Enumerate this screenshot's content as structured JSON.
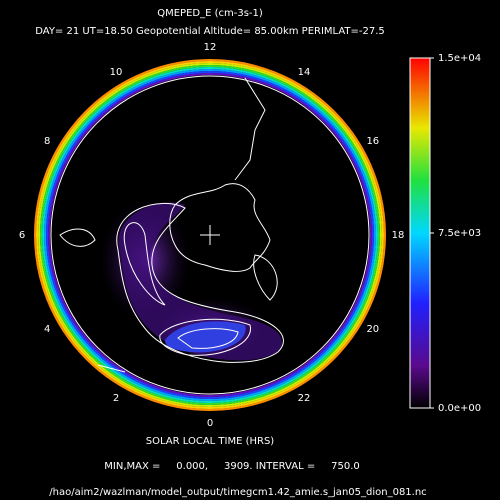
{
  "chart_data": {
    "type": "polar-contour",
    "title": "QMEPED_E (cm-3s-1)",
    "subtitle": "DAY= 21 UT=18.50 Geopotential Altitude= 85.00km PERIMLAT=-27.5",
    "hours": [
      12,
      14,
      16,
      18,
      20,
      22,
      0,
      2,
      4,
      6,
      8,
      10
    ],
    "xlabel": "SOLAR LOCAL TIME (HRS)",
    "summary": "MIN,MAX =     0.000,     3909. INTERVAL =     750.0",
    "file": "/hao/aim2/wazlman/model_output/timegcm1.42_amie.s_jan05_dion_081.nc",
    "colorbar": {
      "lim": [
        0,
        15000
      ],
      "ticks": [
        {
          "value": 15000,
          "label": "1.5e+04"
        },
        {
          "value": 7500,
          "label": "7.5e+03"
        },
        {
          "value": 0,
          "label": "0.0e+00"
        }
      ]
    }
  }
}
